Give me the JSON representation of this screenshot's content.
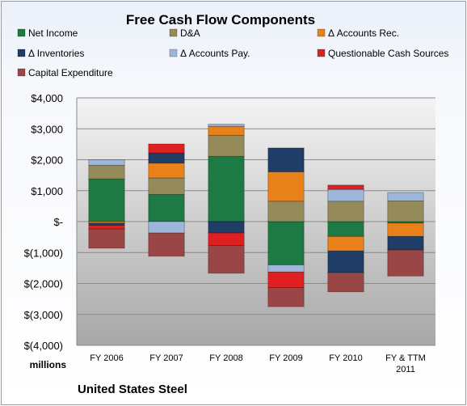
{
  "chart_data": {
    "type": "bar",
    "stacked": true,
    "title": "Free Cash Flow Components",
    "ylabel": "",
    "unit_label": "millions",
    "company": "United States Steel",
    "ylim": [
      -4000,
      4000
    ],
    "yticks": [
      4000,
      3000,
      2000,
      1000,
      0,
      -1000,
      -2000,
      -3000,
      -4000
    ],
    "ytick_labels": [
      "$4,000",
      "$3,000",
      "$2,000",
      "$1,000",
      "$-",
      "$(1,000)",
      "$(2,000)",
      "$(3,000)",
      "$(4,000)"
    ],
    "categories": [
      "FY 2006",
      "FY 2007",
      "FY 2008",
      "FY 2009",
      "FY 2010",
      "FY & TTM 2011"
    ],
    "category_lines": [
      [
        "FY 2006"
      ],
      [
        "FY 2007"
      ],
      [
        "FY 2008"
      ],
      [
        "FY 2009"
      ],
      [
        "FY 2010"
      ],
      [
        "FY & TTM",
        "2011"
      ]
    ],
    "legend_position": "top",
    "grid": true,
    "series": [
      {
        "name": "Net Income",
        "color": "#1e7a45",
        "values": [
          1380,
          880,
          2110,
          -1400,
          -480,
          -50
        ]
      },
      {
        "name": "D&A",
        "color": "#948a5a",
        "values": [
          440,
          530,
          680,
          660,
          660,
          670
        ]
      },
      {
        "name": "Δ Accounts Rec.",
        "color": "#e8811a",
        "values": [
          -50,
          480,
          290,
          950,
          -470,
          -430
        ]
      },
      {
        "name": "Δ Inventories",
        "color": "#1f3d67",
        "values": [
          -70,
          330,
          -370,
          770,
          -700,
          -430
        ]
      },
      {
        "name": "Δ Accounts Pay.",
        "color": "#9db6d9",
        "values": [
          180,
          -370,
          70,
          -230,
          380,
          270
        ]
      },
      {
        "name": "Questionable Cash Sources",
        "color": "#e02020",
        "values": [
          -120,
          290,
          -400,
          -500,
          140,
          -10
        ]
      },
      {
        "name": "Capital Expenditure",
        "color": "#9a4646",
        "values": [
          -620,
          -750,
          -900,
          -620,
          -620,
          -840
        ]
      }
    ]
  }
}
